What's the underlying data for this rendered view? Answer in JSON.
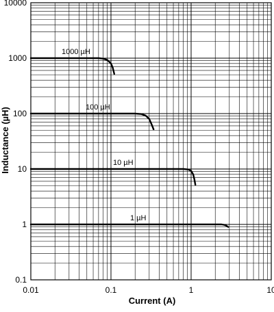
{
  "chart_data": {
    "type": "line",
    "title": "",
    "xlabel": "Current (A)",
    "ylabel": "Inductance (µH)",
    "x_scale": "log",
    "y_scale": "log",
    "xlim": [
      0.01,
      10
    ],
    "ylim": [
      0.1,
      10000
    ],
    "grid": true,
    "x_ticks": [
      {
        "value": 0.01,
        "label": "0.01"
      },
      {
        "value": 0.1,
        "label": "0.1"
      },
      {
        "value": 1,
        "label": "1"
      },
      {
        "value": 10,
        "label": "10"
      }
    ],
    "y_ticks": [
      {
        "value": 10000,
        "label": "10000"
      },
      {
        "value": 1000,
        "label": "1000"
      },
      {
        "value": 100,
        "label": "100"
      },
      {
        "value": 10,
        "label": "10"
      },
      {
        "value": 1,
        "label": "1"
      },
      {
        "value": 0.1,
        "label": "0.1"
      }
    ],
    "series": [
      {
        "name": "1000 µH",
        "x": [
          0.01,
          0.05,
          0.07,
          0.08,
          0.09,
          0.1,
          0.105,
          0.11
        ],
        "y": [
          1000,
          1000,
          1000,
          980,
          930,
          800,
          680,
          520
        ]
      },
      {
        "name": "100 µH",
        "x": [
          0.01,
          0.1,
          0.2,
          0.24,
          0.27,
          0.3,
          0.32,
          0.34
        ],
        "y": [
          100,
          100,
          100,
          98,
          92,
          80,
          65,
          52
        ]
      },
      {
        "name": "10 µH",
        "x": [
          0.01,
          0.5,
          0.8,
          0.92,
          1.0,
          1.06,
          1.1,
          1.13
        ],
        "y": [
          10,
          10,
          10,
          9.8,
          9.3,
          8.0,
          6.5,
          5.2
        ]
      },
      {
        "name": "1 µH",
        "x": [
          0.01,
          1.0,
          2.4,
          2.6,
          2.75,
          2.9
        ],
        "y": [
          1,
          1,
          1,
          0.98,
          0.95,
          0.9
        ]
      }
    ]
  }
}
